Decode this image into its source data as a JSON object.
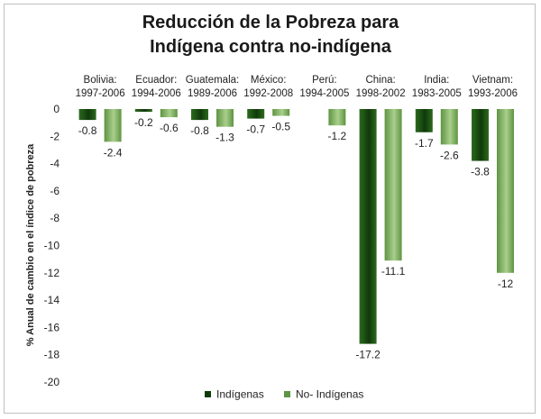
{
  "colors": {
    "indigenas": "#0f3a0a",
    "indigenas_light": "#2d6a1f",
    "no_indigenas": "#5e9442",
    "no_indigenas_light": "#a9cf8c"
  },
  "chart_data": {
    "type": "bar",
    "title_line1": "Reducción de la Pobreza para",
    "title_line2": "Indígena contra no-indígena",
    "xlabel": "",
    "ylabel": "% Anual de cambio en el índice de pobreza",
    "ylim": [
      -20,
      0
    ],
    "yticks": [
      "0",
      "-2",
      "-4",
      "-6",
      "-8",
      "-10",
      "-12",
      "-14",
      "-16",
      "-18",
      "-20"
    ],
    "grid": false,
    "legend_position": "bottom",
    "categories": [
      {
        "country": "Bolivia:",
        "period": "1997-2006"
      },
      {
        "country": "Ecuador:",
        "period": "1994-2006"
      },
      {
        "country": "Guatemala:",
        "period": "1989-2006"
      },
      {
        "country": "México:",
        "period": "1992-2008"
      },
      {
        "country": "Perú:",
        "period": "1994-2005"
      },
      {
        "country": "China:",
        "period": "1998-2002"
      },
      {
        "country": "India:",
        "period": "1983-2005"
      },
      {
        "country": "Vietnam:",
        "period": "1993-2006"
      }
    ],
    "series": [
      {
        "name": "Indígenas",
        "values": [
          -0.8,
          -0.2,
          -0.8,
          -0.7,
          null,
          -17.2,
          -1.7,
          -3.8
        ],
        "labels": [
          "-0.8",
          "-0.2",
          "-0.8",
          "-0.7",
          "",
          "-17.2",
          "-1.7",
          "-3.8"
        ]
      },
      {
        "name": "No- Indígenas",
        "values": [
          -2.4,
          -0.6,
          -1.3,
          -0.5,
          -1.2,
          -11.1,
          -2.6,
          -12
        ],
        "labels": [
          "-2.4",
          "-0.6",
          "-1.3",
          "-0.5",
          "-1.2",
          "-11.1",
          "-2.6",
          "-12"
        ]
      }
    ]
  }
}
